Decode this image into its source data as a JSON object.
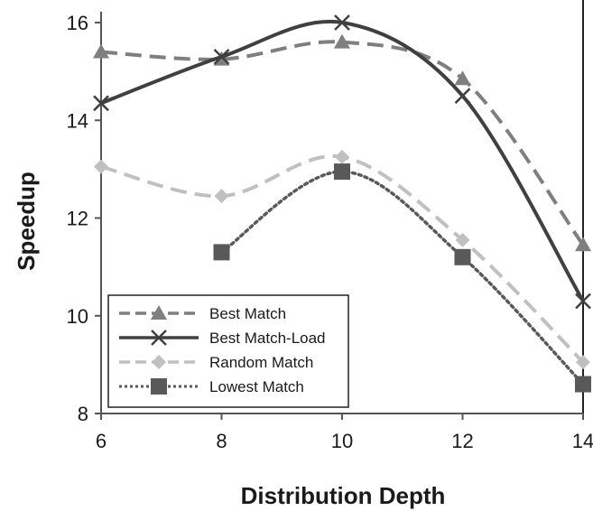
{
  "chart_data": {
    "type": "line",
    "title": "",
    "xlabel": "Distribution Depth",
    "ylabel": "Speedup",
    "x": [
      6,
      8,
      10,
      12,
      14
    ],
    "xlim": [
      6,
      14
    ],
    "ylim": [
      8,
      16
    ],
    "xticks": [
      6,
      8,
      10,
      12,
      14
    ],
    "yticks": [
      8,
      10,
      12,
      14,
      16
    ],
    "grid": false,
    "smooth": true,
    "legend_position": "bottom-left",
    "series": [
      {
        "name": "Best Match",
        "values": [
          15.4,
          15.25,
          15.6,
          14.85,
          11.45
        ],
        "color": "#7f7f7f",
        "line_style": "dashed",
        "marker": "triangle"
      },
      {
        "name": "Best Match-Load",
        "values": [
          14.35,
          15.3,
          16.0,
          14.5,
          10.3
        ],
        "color": "#404040",
        "line_style": "solid",
        "marker": "x"
      },
      {
        "name": "Random Match",
        "values": [
          13.05,
          12.45,
          13.25,
          11.55,
          9.05
        ],
        "color": "#c0c0c0",
        "line_style": "dashed",
        "marker": "diamond"
      },
      {
        "name": "Lowest Match",
        "values": [
          null,
          11.3,
          12.95,
          11.2,
          8.6
        ],
        "color": "#595959",
        "line_style": "dotted",
        "marker": "square"
      }
    ]
  }
}
